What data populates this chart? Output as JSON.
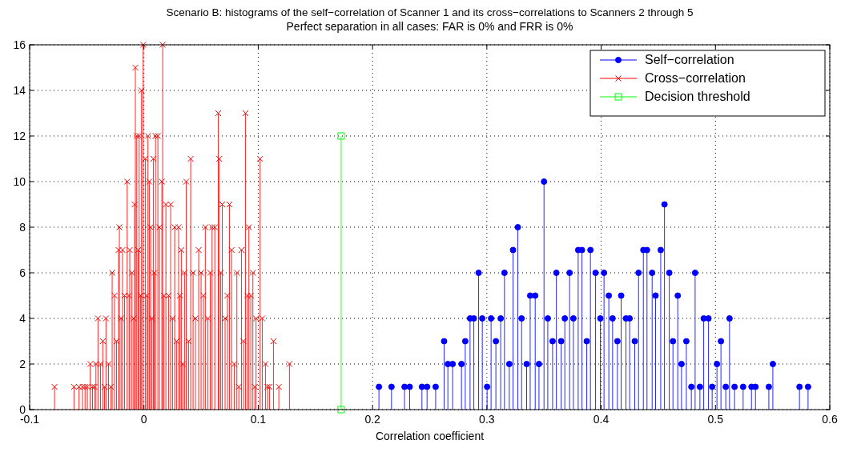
{
  "chart_data": {
    "type": "lollipop",
    "title": "Scenario B: histograms of the self−correlation of Scanner 1 and its cross−correlations to Scanners 2 through 5",
    "subtitle": "Perfect separation in all cases: FAR is 0% and FRR is 0%",
    "xlabel": "Correlation coefficient",
    "xlim": [
      -0.1,
      0.6
    ],
    "xticks": [
      -0.1,
      0,
      0.1,
      0.2,
      0.3,
      0.4,
      0.5,
      0.6
    ],
    "ylim": [
      0,
      16
    ],
    "yticks": [
      0,
      2,
      4,
      6,
      8,
      10,
      12,
      14,
      16
    ],
    "grid": true,
    "legend": "top right",
    "series": [
      {
        "name": "Self−correlation",
        "marker": "circle",
        "color": "#0000ff",
        "x": [
          0.2056,
          0.2166,
          0.228,
          0.2325,
          0.2432,
          0.2477,
          0.2552,
          0.2626,
          0.2659,
          0.2701,
          0.2778,
          0.2811,
          0.2853,
          0.2886,
          0.2928,
          0.296,
          0.3002,
          0.3037,
          0.3079,
          0.3121,
          0.3154,
          0.3196,
          0.3229,
          0.3271,
          0.3304,
          0.3348,
          0.3379,
          0.3423,
          0.3456,
          0.35,
          0.3533,
          0.3575,
          0.3608,
          0.365,
          0.3682,
          0.3724,
          0.3757,
          0.3799,
          0.3832,
          0.3874,
          0.3906,
          0.3951,
          0.3993,
          0.4025,
          0.4067,
          0.41,
          0.4142,
          0.4175,
          0.4217,
          0.4249,
          0.4294,
          0.4327,
          0.4369,
          0.4401,
          0.4446,
          0.4476,
          0.4521,
          0.4554,
          0.4596,
          0.4628,
          0.467,
          0.4703,
          0.4745,
          0.4789,
          0.4822,
          0.4864,
          0.4897,
          0.4939,
          0.4971,
          0.5013,
          0.5048,
          0.509,
          0.5123,
          0.5167,
          0.5242,
          0.5315,
          0.535,
          0.5467,
          0.5502,
          0.5735,
          0.581
        ],
        "values": [
          1,
          1,
          1,
          1,
          1,
          1,
          1,
          3,
          2,
          2,
          2,
          3,
          4,
          4,
          6,
          4,
          1,
          4,
          3,
          4,
          6,
          2,
          7,
          8,
          4,
          2,
          5,
          5,
          2,
          10,
          4,
          3,
          6,
          3,
          4,
          6,
          4,
          7,
          7,
          3,
          7,
          6,
          4,
          6,
          5,
          4,
          3,
          5,
          4,
          4,
          3,
          6,
          7,
          7,
          6,
          5,
          7,
          9,
          6,
          3,
          5,
          2,
          3,
          1,
          6,
          1,
          4,
          4,
          1,
          2,
          3,
          1,
          4,
          1,
          1,
          1,
          1,
          1,
          2,
          1,
          1
        ]
      },
      {
        "name": "Cross−correlation",
        "marker": "cross",
        "color": "#ff0000",
        "x": [
          -0.0782,
          -0.0612,
          -0.0568,
          -0.0537,
          -0.0515,
          -0.0495,
          -0.047,
          -0.045,
          -0.0432,
          -0.042,
          -0.0402,
          -0.038,
          -0.036,
          -0.0345,
          -0.0332,
          -0.031,
          -0.029,
          -0.0278,
          -0.0257,
          -0.024,
          -0.0222,
          -0.0215,
          -0.02,
          -0.0187,
          -0.017,
          -0.0147,
          -0.013,
          -0.0124,
          -0.0105,
          -0.009,
          -0.0082,
          -0.0075,
          -0.0063,
          -0.005,
          -0.0042,
          -0.003,
          -0.0021,
          -0.0007,
          0.0012,
          0.0025,
          0.0035,
          0.0047,
          0.0059,
          0.007,
          0.0082,
          0.009,
          0.0101,
          0.0122,
          0.0136,
          0.0157,
          0.0164,
          0.0175,
          0.0192,
          0.0215,
          0.0234,
          0.025,
          0.0269,
          0.0285,
          0.0304,
          0.0315,
          0.0327,
          0.034,
          0.0355,
          0.037,
          0.039,
          0.0409,
          0.043,
          0.045,
          0.0479,
          0.05,
          0.052,
          0.0537,
          0.056,
          0.058,
          0.0596,
          0.062,
          0.065,
          0.0659,
          0.0672,
          0.0685,
          0.071,
          0.073,
          0.0748,
          0.0767,
          0.079,
          0.0813,
          0.083,
          0.0853,
          0.087,
          0.0888,
          0.0905,
          0.0918,
          0.0935,
          0.0953,
          0.097,
          0.0981,
          0.1016,
          0.1035,
          0.1063,
          0.108,
          0.1098,
          0.1133,
          0.118,
          0.1273
        ],
        "values": [
          1,
          1,
          1,
          1,
          1,
          1,
          2,
          1,
          1,
          2,
          4,
          2,
          3,
          1,
          4,
          2,
          1,
          6,
          5,
          3,
          7,
          8,
          4,
          7,
          5,
          10,
          5,
          7,
          6,
          4,
          9,
          15,
          12,
          7,
          12,
          5,
          14,
          16,
          11,
          5,
          12,
          10,
          8,
          4,
          11,
          6,
          12,
          12,
          8,
          10,
          16,
          5,
          9,
          5,
          9,
          4,
          8,
          3,
          8,
          5,
          7,
          2,
          6,
          10,
          3,
          11,
          6,
          4,
          7,
          6,
          5,
          8,
          4,
          6,
          8,
          8,
          13,
          11,
          6,
          9,
          4,
          5,
          9,
          7,
          2,
          6,
          1,
          7,
          3,
          13,
          5,
          8,
          5,
          6,
          1,
          4,
          11,
          4,
          2,
          1,
          1,
          3,
          1,
          2
        ]
      },
      {
        "name": "Decision threshold",
        "marker": "square",
        "color": "#00ff00",
        "x": [
          0.1725,
          0.1725
        ],
        "values": [
          0,
          12
        ]
      }
    ]
  }
}
